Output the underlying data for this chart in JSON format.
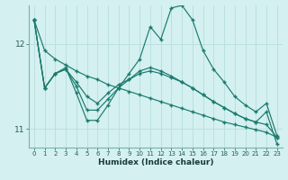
{
  "xlabel": "Humidex (Indice chaleur)",
  "bg_color": "#d4f0f0",
  "line_color": "#1a7a6e",
  "grid_color": "#b8dede",
  "xlim": [
    -0.5,
    23.5
  ],
  "ylim": [
    10.78,
    12.45
  ],
  "yticks": [
    11,
    12
  ],
  "xticks": [
    0,
    1,
    2,
    3,
    4,
    5,
    6,
    7,
    8,
    9,
    10,
    11,
    12,
    13,
    14,
    15,
    16,
    17,
    18,
    19,
    20,
    21,
    22,
    23
  ],
  "series": [
    [
      12.28,
      11.92,
      11.82,
      11.75,
      11.68,
      11.62,
      11.58,
      11.52,
      11.48,
      11.44,
      11.4,
      11.36,
      11.32,
      11.28,
      11.24,
      11.2,
      11.16,
      11.12,
      11.08,
      11.05,
      11.02,
      10.99,
      10.96,
      10.9
    ],
    [
      12.28,
      11.48,
      11.65,
      11.7,
      11.55,
      11.38,
      11.3,
      11.42,
      11.52,
      11.58,
      11.65,
      11.68,
      11.65,
      11.6,
      11.55,
      11.48,
      11.4,
      11.32,
      11.25,
      11.18,
      11.12,
      11.08,
      11.05,
      10.9
    ],
    [
      12.28,
      11.48,
      11.65,
      11.7,
      11.5,
      11.22,
      11.22,
      11.35,
      11.48,
      11.58,
      11.68,
      11.72,
      11.68,
      11.62,
      11.55,
      11.48,
      11.4,
      11.32,
      11.25,
      11.18,
      11.12,
      11.08,
      11.2,
      10.82
    ],
    [
      12.28,
      11.48,
      11.65,
      11.72,
      11.42,
      11.1,
      11.1,
      11.28,
      11.48,
      11.65,
      11.82,
      12.2,
      12.05,
      12.42,
      12.45,
      12.28,
      11.92,
      11.7,
      11.55,
      11.38,
      11.28,
      11.2,
      11.3,
      10.92
    ]
  ]
}
